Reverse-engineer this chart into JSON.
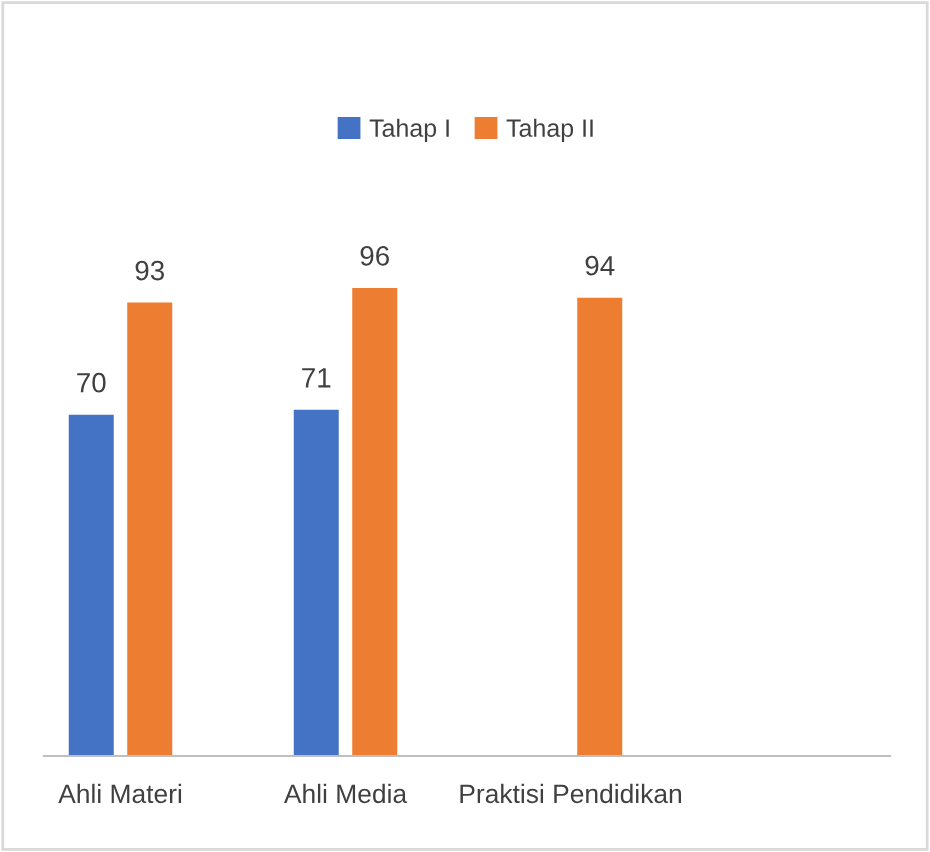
{
  "chart_data": {
    "type": "bar",
    "categories": [
      "Ahli Materi",
      "Ahli Media",
      "Praktisi Pendidikan"
    ],
    "series": [
      {
        "name": "Tahap I",
        "color": "#4472c4",
        "values": [
          70,
          71,
          null
        ]
      },
      {
        "name": "Tahap II",
        "color": "#ed7d31",
        "values": [
          93,
          96,
          94
        ]
      }
    ],
    "data_labels": true,
    "legend": "top",
    "grid": false
  }
}
